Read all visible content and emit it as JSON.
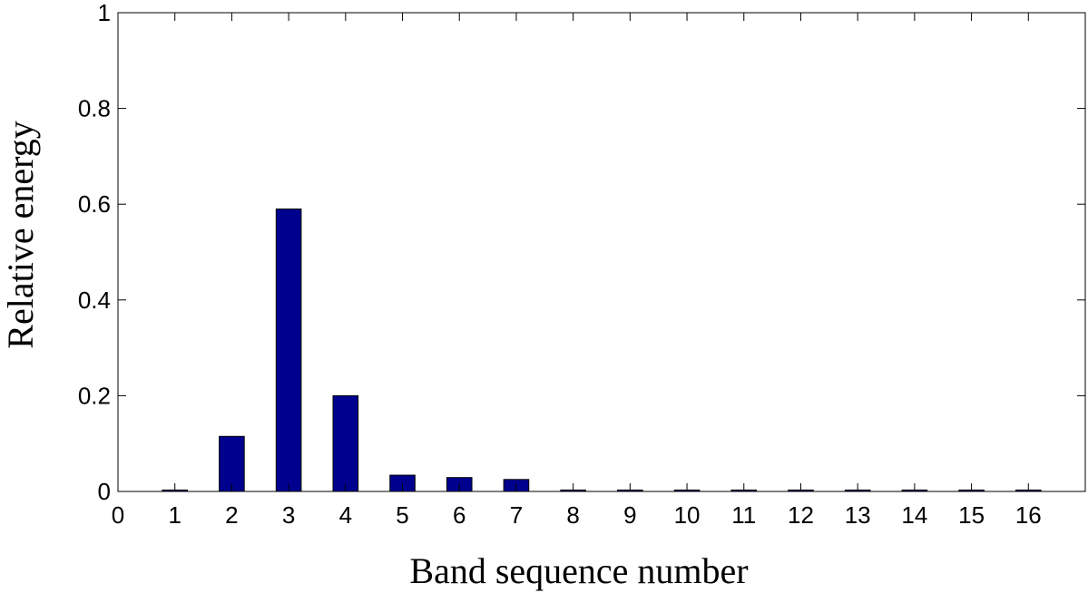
{
  "chart_data": {
    "type": "bar",
    "title": "",
    "xlabel": "Band sequence number",
    "ylabel": "Relative energy",
    "xlim": [
      0,
      17
    ],
    "ylim": [
      0,
      1
    ],
    "x_ticks": [
      "0",
      "1",
      "2",
      "3",
      "4",
      "5",
      "6",
      "7",
      "8",
      "9",
      "10",
      "11",
      "12",
      "13",
      "14",
      "15",
      "16"
    ],
    "y_ticks": [
      "0",
      "0.2",
      "0.4",
      "0.6",
      "0.8",
      "1"
    ],
    "categories": [
      1,
      2,
      3,
      4,
      5,
      6,
      7,
      8,
      9,
      10,
      11,
      12,
      13,
      14,
      15,
      16
    ],
    "values": [
      0.003,
      0.115,
      0.59,
      0.2,
      0.034,
      0.029,
      0.025,
      0.003,
      0.003,
      0.003,
      0.003,
      0.003,
      0.003,
      0.003,
      0.003,
      0.003
    ],
    "bar_color": "#00008F",
    "grid": false,
    "legend": "none"
  }
}
